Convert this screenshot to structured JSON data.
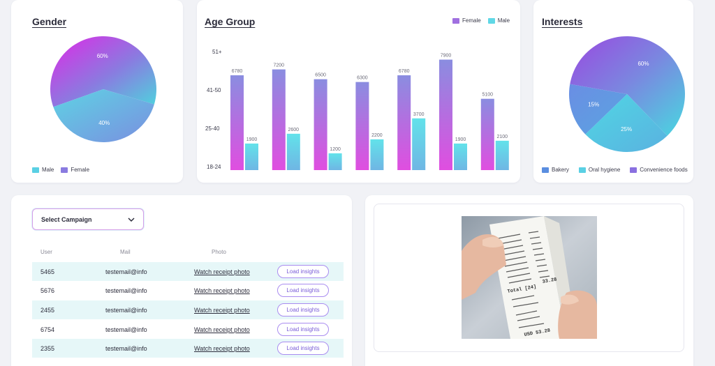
{
  "gender": {
    "title": "Gender",
    "slices": [
      {
        "label": "60%",
        "value": 60
      },
      {
        "label": "40%",
        "value": 40
      }
    ],
    "legend": [
      {
        "name": "Male",
        "color": "#5ad0e4"
      },
      {
        "name": "Female",
        "color": "#8a7be0"
      }
    ]
  },
  "age_group": {
    "title": "Age Group",
    "legend": [
      {
        "name": "Female",
        "color": "#a070e0"
      },
      {
        "name": "Male",
        "color": "#60d8e6"
      }
    ],
    "y_ticks": [
      "51+",
      "41-50",
      "25-40",
      "18-24"
    ]
  },
  "interests": {
    "title": "Interests",
    "slices": [
      {
        "label": "60%",
        "value": 60
      },
      {
        "label": "25%",
        "value": 25
      },
      {
        "label": "15%",
        "value": 15
      }
    ],
    "legend": [
      {
        "name": "Bakery",
        "color": "#5a8ee0"
      },
      {
        "name": "Oral hygiene",
        "color": "#5ad0e4"
      },
      {
        "name": "Convenience foods",
        "color": "#8a70e0"
      }
    ]
  },
  "campaign": {
    "select_label": "Select Campaign",
    "columns": [
      "User",
      "Mail",
      "Photo"
    ],
    "rows": [
      {
        "user": "5465",
        "mail": "testemail@info",
        "photo": "Watch receipt photo",
        "action": "Load insights"
      },
      {
        "user": "5676",
        "mail": "testemail@info",
        "photo": "Watch receipt photo",
        "action": "Load insights"
      },
      {
        "user": "2455",
        "mail": "testemail@info",
        "photo": "Watch receipt photo",
        "action": "Load insights"
      },
      {
        "user": "6754",
        "mail": "testemail@info",
        "photo": "Watch receipt photo",
        "action": "Load insights"
      },
      {
        "user": "2355",
        "mail": "testemail@info",
        "photo": "Watch receipt photo",
        "action": "Load insights"
      }
    ]
  },
  "receipt_photo": {
    "lines": [
      "Total [24]",
      "33.28",
      "USD 53.28"
    ]
  },
  "chart_data": [
    {
      "type": "pie",
      "title": "Gender",
      "categories": [
        "Female",
        "Male"
      ],
      "values": [
        60,
        40
      ],
      "legend": "bottom-left"
    },
    {
      "type": "bar",
      "title": "Age Group",
      "categories": [
        "",
        "",
        "",
        "",
        "",
        "",
        ""
      ],
      "series": [
        {
          "name": "Female",
          "values": [
            6780,
            7200,
            6500,
            6300,
            6780,
            7900,
            5100
          ]
        },
        {
          "name": "Male",
          "values": [
            1900,
            2600,
            1200,
            2200,
            3700,
            1900,
            2100
          ]
        }
      ],
      "y_tick_labels": [
        "18-24",
        "25-40",
        "41-50",
        "51+"
      ],
      "ylim": [
        0,
        10000
      ],
      "legend": "top-right",
      "grid": false
    },
    {
      "type": "pie",
      "title": "Interests",
      "categories": [
        "Convenience foods",
        "Oral hygiene",
        "Bakery"
      ],
      "values": [
        60,
        25,
        15
      ],
      "legend": "bottom"
    }
  ]
}
